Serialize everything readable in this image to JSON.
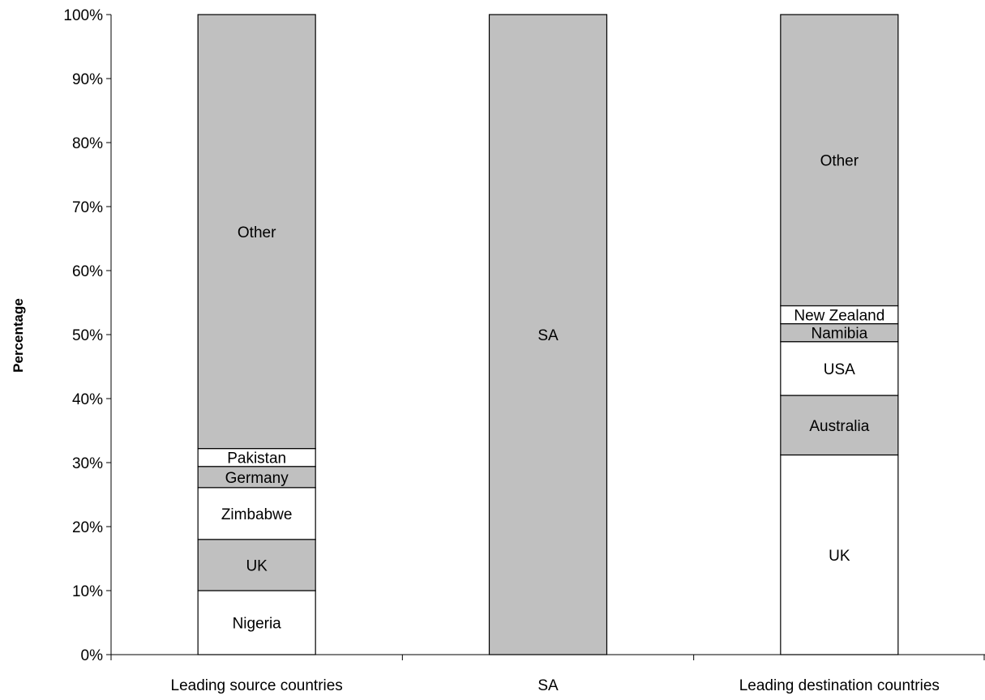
{
  "chart_data": {
    "type": "bar",
    "stacked": true,
    "percent": true,
    "ylabel": "Percentage",
    "xlabel": "",
    "ylim": [
      0,
      100
    ],
    "yticks": [
      "0%",
      "10%",
      "20%",
      "30%",
      "40%",
      "50%",
      "60%",
      "70%",
      "80%",
      "90%",
      "100%"
    ],
    "grid": false,
    "legend": "none",
    "categories": [
      "Leading source countries",
      "SA",
      "Leading destination countries"
    ],
    "bars": [
      {
        "category": "Leading source countries",
        "segments": [
          {
            "label": "Nigeria",
            "value": 10,
            "color": "#ffffff"
          },
          {
            "label": "UK",
            "value": 8,
            "color": "#c0c0c0"
          },
          {
            "label": "Zimbabwe",
            "value": 8.1,
            "color": "#ffffff"
          },
          {
            "label": "Germany",
            "value": 3.3,
            "color": "#c0c0c0"
          },
          {
            "label": "Pakistan",
            "value": 2.8,
            "color": "#ffffff"
          },
          {
            "label": "Other",
            "value": 67.8,
            "color": "#c0c0c0"
          }
        ]
      },
      {
        "category": "SA",
        "segments": [
          {
            "label": "SA",
            "value": 100,
            "color": "#c0c0c0"
          }
        ]
      },
      {
        "category": "Leading destination countries",
        "segments": [
          {
            "label": "UK",
            "value": 31.2,
            "color": "#ffffff"
          },
          {
            "label": "Australia",
            "value": 9.3,
            "color": "#c0c0c0"
          },
          {
            "label": "USA",
            "value": 8.4,
            "color": "#ffffff"
          },
          {
            "label": "Namibia",
            "value": 2.8,
            "color": "#c0c0c0"
          },
          {
            "label": "New Zealand",
            "value": 2.8,
            "color": "#ffffff"
          },
          {
            "label": "Other",
            "value": 45.5,
            "color": "#c0c0c0"
          }
        ]
      }
    ]
  }
}
